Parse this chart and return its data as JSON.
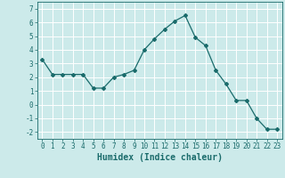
{
  "x": [
    0,
    1,
    2,
    3,
    4,
    5,
    6,
    7,
    8,
    9,
    10,
    11,
    12,
    13,
    14,
    15,
    16,
    17,
    18,
    19,
    20,
    21,
    22,
    23
  ],
  "y": [
    3.3,
    2.2,
    2.2,
    2.2,
    2.2,
    1.2,
    1.2,
    2.0,
    2.2,
    2.5,
    4.0,
    4.8,
    5.5,
    6.1,
    6.5,
    4.9,
    4.3,
    2.5,
    1.5,
    0.3,
    0.3,
    -1.0,
    -1.8,
    -1.8
  ],
  "line_color": "#1a6b6b",
  "bg_color": "#cceaea",
  "plot_bg_color": "#cceaea",
  "grid_color": "#ffffff",
  "xlabel": "Humidex (Indice chaleur)",
  "ylim": [
    -2.5,
    7.5
  ],
  "xlim": [
    -0.5,
    23.5
  ],
  "yticks": [
    -2,
    -1,
    0,
    1,
    2,
    3,
    4,
    5,
    6,
    7
  ],
  "xticks": [
    0,
    1,
    2,
    3,
    4,
    5,
    6,
    7,
    8,
    9,
    10,
    11,
    12,
    13,
    14,
    15,
    16,
    17,
    18,
    19,
    20,
    21,
    22,
    23
  ],
  "font_color": "#1a6b6b",
  "tick_fontsize": 5.5,
  "label_fontsize": 7.0,
  "marker_style": "D",
  "marker_size": 2.0,
  "line_width": 0.9
}
